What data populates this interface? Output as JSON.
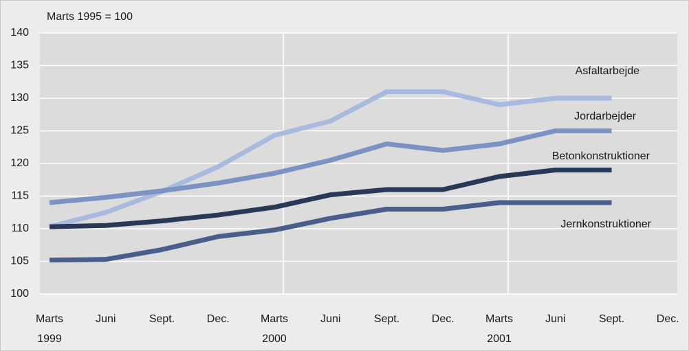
{
  "chart_data": {
    "type": "line",
    "subtitle": "Marts 1995 = 100",
    "categories": [
      "Marts",
      "Juni",
      "Sept.",
      "Dec.",
      "Marts",
      "Juni",
      "Sept.",
      "Dec.",
      "Marts",
      "Juni",
      "Sept.",
      "Dec."
    ],
    "category_years": [
      "1999",
      null,
      null,
      null,
      "2000",
      null,
      null,
      null,
      "2001",
      null,
      null,
      null
    ],
    "series": [
      {
        "name": "Asfaltarbejde",
        "color": "#a8badd",
        "values": [
          110.3,
          112.5,
          115.7,
          119.5,
          124.3,
          126.5,
          131,
          131,
          129,
          130,
          130,
          null
        ]
      },
      {
        "name": "Jordarbejder",
        "color": "#7b93c3",
        "values": [
          114,
          114.8,
          115.8,
          117,
          118.5,
          120.5,
          123,
          122,
          123,
          125,
          125,
          null
        ]
      },
      {
        "name": "Betonkonstruktioner",
        "color": "#2a3858",
        "values": [
          110.3,
          110.5,
          111.2,
          112.1,
          113.3,
          115.2,
          116,
          116,
          118,
          119,
          119,
          null
        ]
      },
      {
        "name": "Jernkonstruktioner",
        "color": "#4a5e8c",
        "values": [
          105.2,
          105.3,
          106.8,
          108.8,
          109.8,
          111.6,
          113,
          113,
          114,
          114,
          114,
          null
        ]
      }
    ],
    "ylim": [
      100,
      140
    ],
    "yticks": [
      100,
      105,
      110,
      115,
      120,
      125,
      130,
      135,
      140
    ],
    "grid": true
  }
}
